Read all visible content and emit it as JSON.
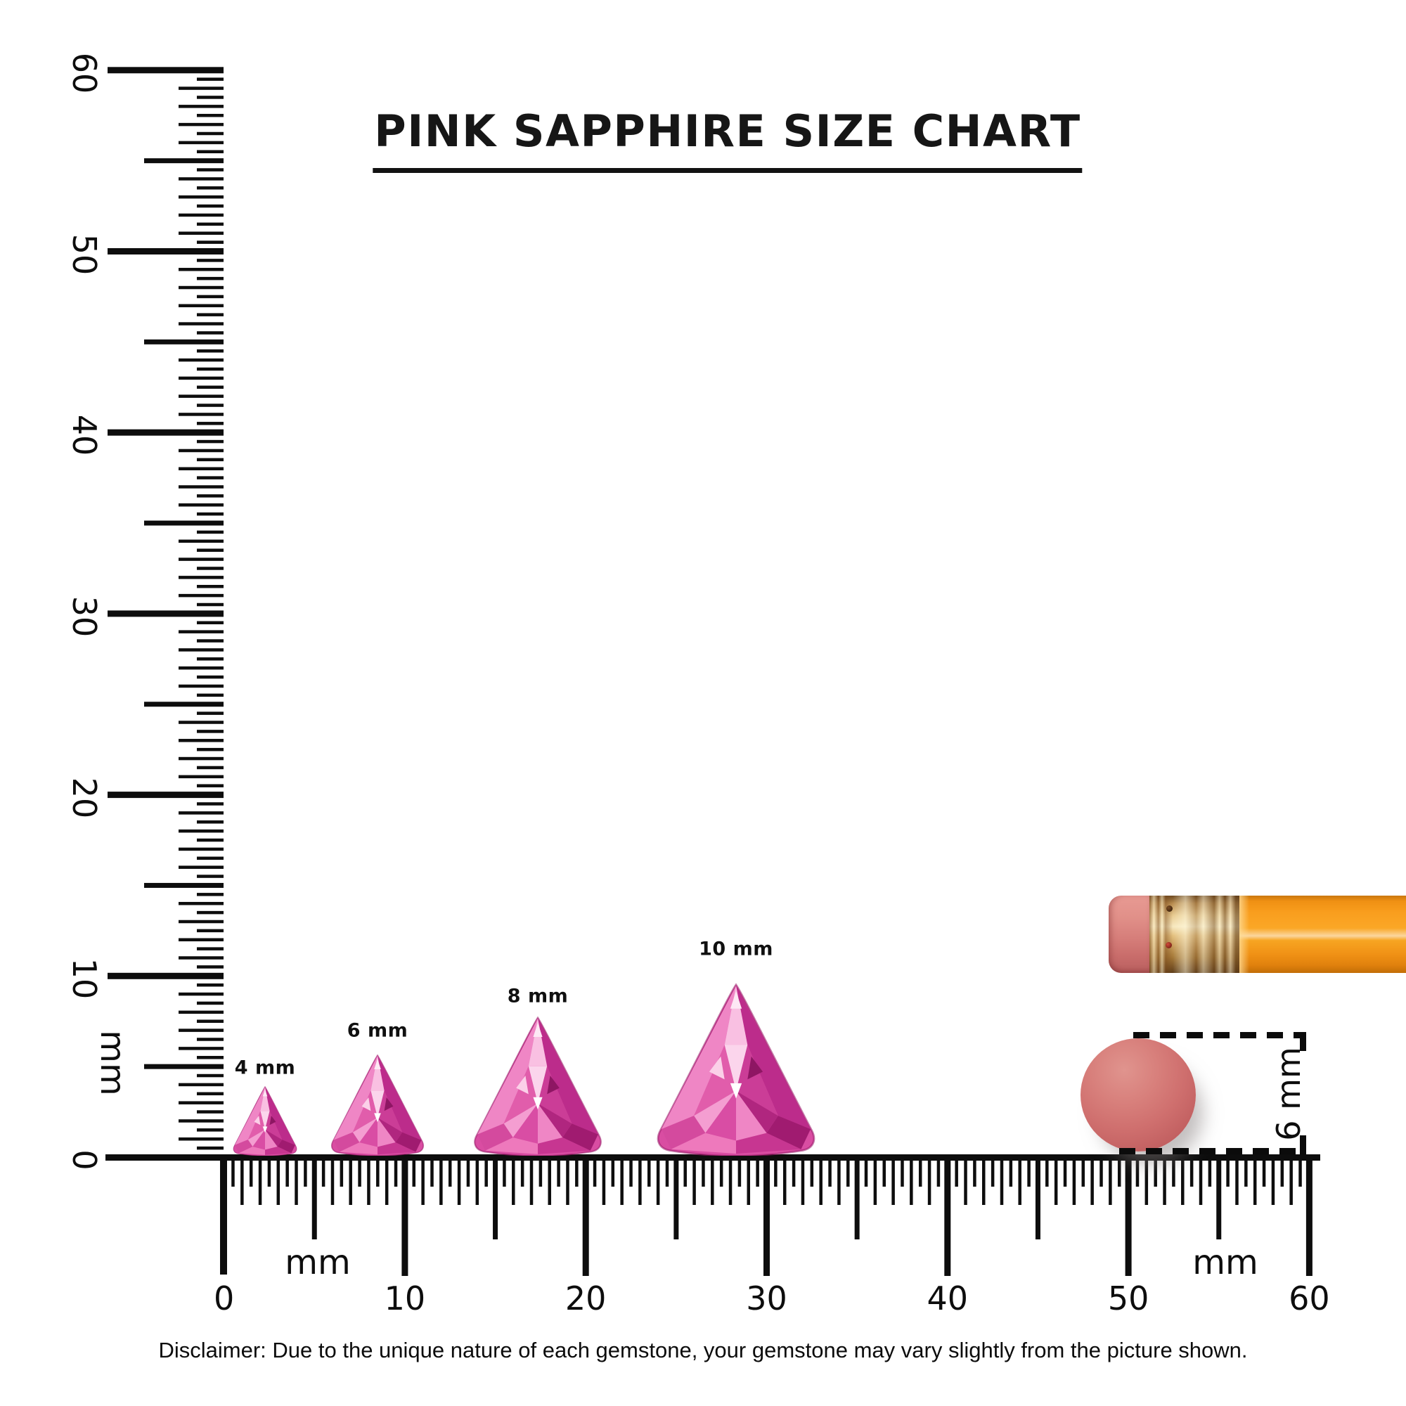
{
  "title": "PINK SAPPHIRE SIZE CHART",
  "disclaimer": "Disclaimer: Due to the unique nature of each gemstone, your gemstone may vary slightly from the picture shown.",
  "gems": [
    {
      "label": "4 mm",
      "size_mm": 4
    },
    {
      "label": "6 mm",
      "size_mm": 6
    },
    {
      "label": "8 mm",
      "size_mm": 8
    },
    {
      "label": "10 mm",
      "size_mm": 10
    }
  ],
  "rulers": {
    "unit_label": "mm",
    "vertical": {
      "min_mm": 0,
      "max_mm": 60,
      "major_labels": [
        "0",
        "10",
        "20",
        "30",
        "40",
        "50",
        "60"
      ]
    },
    "horizontal": {
      "min_mm": 0,
      "max_mm": 60,
      "major_labels": [
        "0",
        "10",
        "20",
        "30",
        "40",
        "50",
        "60"
      ]
    }
  },
  "reference_objects": {
    "pencil": "pencil with eraser",
    "eraser_dot_annotation": "6 mm",
    "eraser_dot_diameter_mm": 6
  },
  "colors": {
    "ink": "#0d0d0d",
    "gem_pink_light": "#f3a8d6",
    "gem_pink": "#e060ae",
    "gem_magenta_deep": "#a51d74",
    "pencil_orange": "#f89c1c",
    "ferrule_gold": "#e9cc92",
    "eraser_salmon": "#cf6f6e"
  }
}
